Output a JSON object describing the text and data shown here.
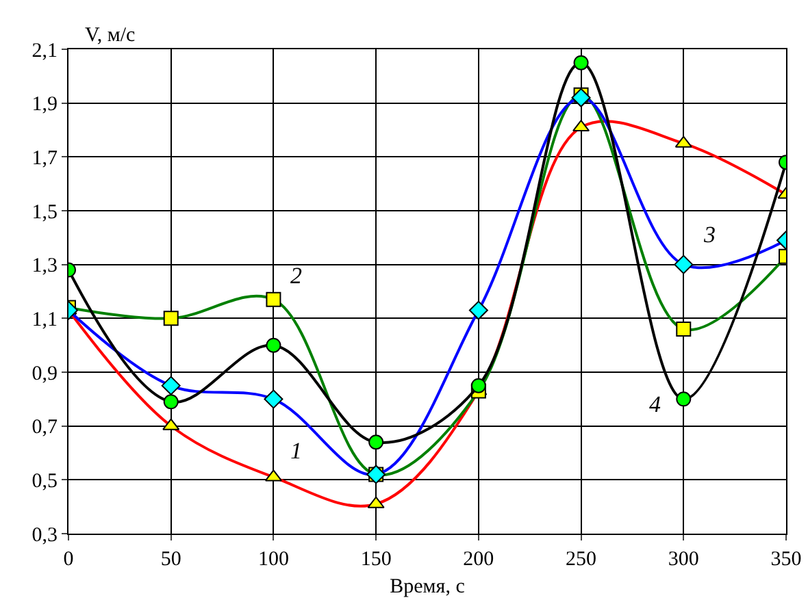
{
  "chart_data": {
    "type": "line",
    "xlabel": "Время, с",
    "ylabel": "V, м/с",
    "x": [
      0,
      50,
      100,
      150,
      200,
      250,
      300,
      350
    ],
    "xlim": [
      0,
      350
    ],
    "xticks": [
      0,
      50,
      100,
      150,
      200,
      250,
      300,
      350
    ],
    "ylim": [
      0.3,
      2.1
    ],
    "yticks": [
      {
        "value": 0.3,
        "label": "0,3"
      },
      {
        "value": 0.5,
        "label": "0,5"
      },
      {
        "value": 0.7,
        "label": "0,7"
      },
      {
        "value": 0.9,
        "label": "0,9"
      },
      {
        "value": 1.1,
        "label": "1,1"
      },
      {
        "value": 1.3,
        "label": "1,3"
      },
      {
        "value": 1.5,
        "label": "1,5"
      },
      {
        "value": 1.7,
        "label": "1,7"
      },
      {
        "value": 1.9,
        "label": "1,9"
      },
      {
        "value": 2.1,
        "label": "2,1"
      }
    ],
    "grid": true,
    "series": [
      {
        "name": "1",
        "color": "#ff0000",
        "marker": "triangle",
        "colors": [
          "#ffff00",
          "#ffff00",
          "#ffff00",
          "#ffff00",
          "#ffff00",
          "#ffff00",
          "#ffff00",
          "#ffff00"
        ],
        "values": [
          1.13,
          0.7,
          0.51,
          0.41,
          0.83,
          1.81,
          1.75,
          1.56
        ]
      },
      {
        "name": "2",
        "color": "#008000",
        "marker": "square",
        "colors": [
          "#ffff00",
          "#ffff00",
          "#ffff00",
          "#ffff00",
          "#ffff00",
          "#ffff00",
          "#ffff00",
          "#ffff00"
        ],
        "values": [
          1.14,
          1.1,
          1.17,
          0.52,
          0.83,
          1.93,
          1.06,
          1.33
        ]
      },
      {
        "name": "3",
        "color": "#0000ff",
        "marker": "diamond",
        "colors": [
          "#00ffff",
          "#00ffff",
          "#00ffff",
          "#00ffff",
          "#00ffff",
          "#00ffff",
          "#00ffff",
          "#00ffff"
        ],
        "values": [
          1.13,
          0.85,
          0.8,
          0.52,
          1.13,
          1.92,
          1.3,
          1.39
        ]
      },
      {
        "name": "4",
        "color": "#000000",
        "marker": "circle",
        "colors": [
          "#00ff00",
          "#00ff00",
          "#00ff00",
          "#00ff00",
          "#00ff00",
          "#00ff00",
          "#00ff00",
          "#00ff00"
        ],
        "values": [
          1.28,
          0.79,
          1.0,
          0.64,
          0.85,
          2.05,
          0.8,
          1.68
        ]
      }
    ]
  }
}
